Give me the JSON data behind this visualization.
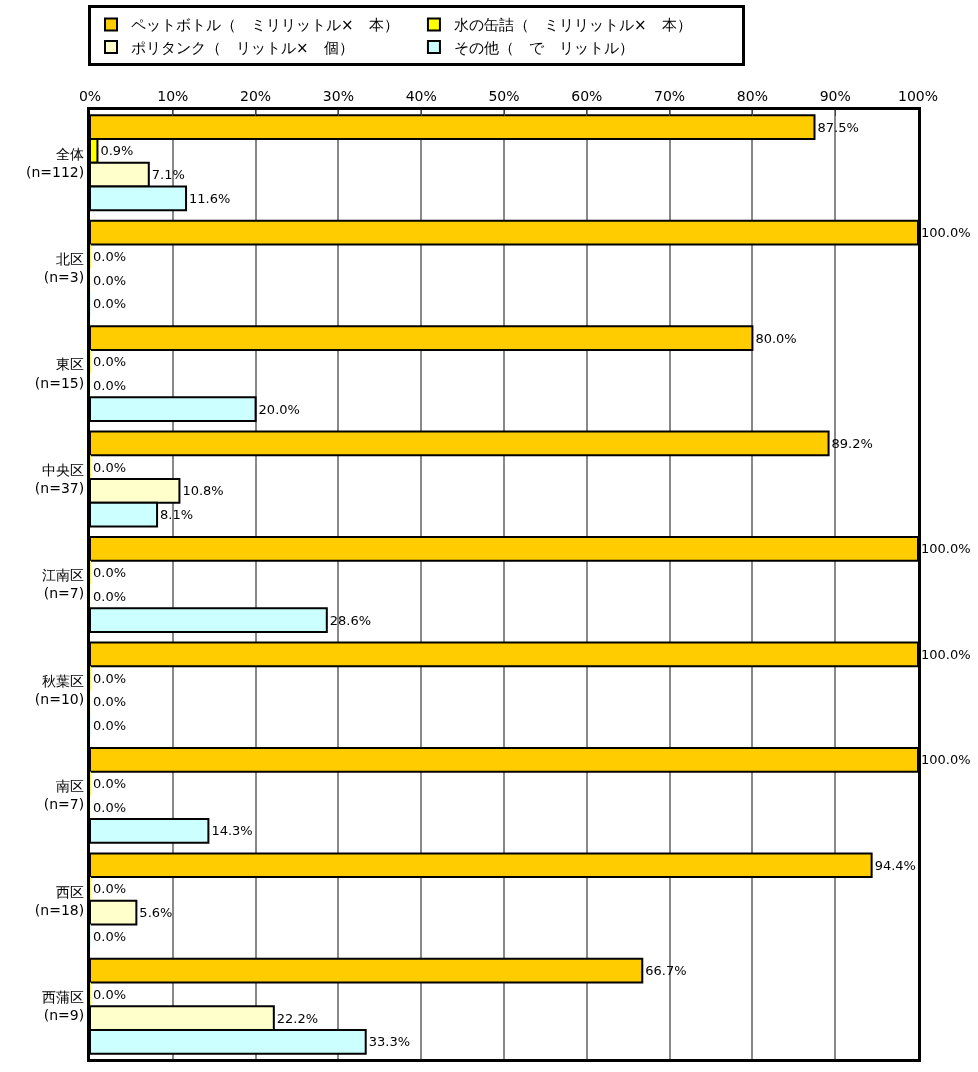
{
  "chart_data": {
    "type": "bar",
    "orientation": "horizontal",
    "categories": [
      "全体\n(n=112)",
      "北区\n(n=3)",
      "東区\n(n=15)",
      "中央区\n(n=37)",
      "江南区\n(n=7)",
      "秋葉区\n(n=10)",
      "南区\n(n=7)",
      "西区\n(n=18)",
      "西蒲区\n(n=9)"
    ],
    "series": [
      {
        "name": "ペットボトル（　ミリリットル×　本）",
        "color": "#ffcc00",
        "values": [
          87.5,
          100.0,
          80.0,
          89.2,
          100.0,
          100.0,
          100.0,
          94.4,
          66.7
        ],
        "value_labels": [
          "87.5%",
          "100.0%",
          "80.0%",
          "89.2%",
          "100.0%",
          "100.0%",
          "100.0%",
          "94.4%",
          "66.7%"
        ]
      },
      {
        "name": "水の缶詰（　ミリリットル×　本）",
        "color": "#ffff00",
        "values": [
          0.9,
          0.0,
          0.0,
          0.0,
          0.0,
          0.0,
          0.0,
          0.0,
          0.0
        ],
        "value_labels": [
          "0.9%",
          "0.0%",
          "0.0%",
          "0.0%",
          "0.0%",
          "0.0%",
          "0.0%",
          "0.0%",
          "0.0%"
        ]
      },
      {
        "name": "ポリタンク（　リットル×　個）",
        "color": "#ffffcc",
        "values": [
          7.1,
          0.0,
          0.0,
          10.8,
          0.0,
          0.0,
          0.0,
          5.6,
          22.2
        ],
        "value_labels": [
          "7.1%",
          "0.0%",
          "0.0%",
          "10.8%",
          "0.0%",
          "0.0%",
          "0.0%",
          "5.6%",
          "22.2%"
        ]
      },
      {
        "name": "その他（　で　リットル）",
        "color": "#ccffff",
        "values": [
          11.6,
          0.0,
          20.0,
          8.1,
          28.6,
          0.0,
          14.3,
          0.0,
          33.3
        ],
        "value_labels": [
          "11.6%",
          "0.0%",
          "20.0%",
          "8.1%",
          "28.6%",
          "0.0%",
          "14.3%",
          "0.0%",
          "33.3%"
        ]
      }
    ],
    "xlim": [
      0,
      100
    ],
    "xticks": [
      {
        "value": 0,
        "label": "0%"
      },
      {
        "value": 10,
        "label": "10%"
      },
      {
        "value": 20,
        "label": "20%"
      },
      {
        "value": 30,
        "label": "30%"
      },
      {
        "value": 40,
        "label": "40%"
      },
      {
        "value": 50,
        "label": "50%"
      },
      {
        "value": 60,
        "label": "60%"
      },
      {
        "value": 70,
        "label": "70%"
      },
      {
        "value": 80,
        "label": "80%"
      },
      {
        "value": 90,
        "label": "90%"
      },
      {
        "value": 100,
        "label": "100%"
      }
    ],
    "grid": "x",
    "legend": "top"
  }
}
